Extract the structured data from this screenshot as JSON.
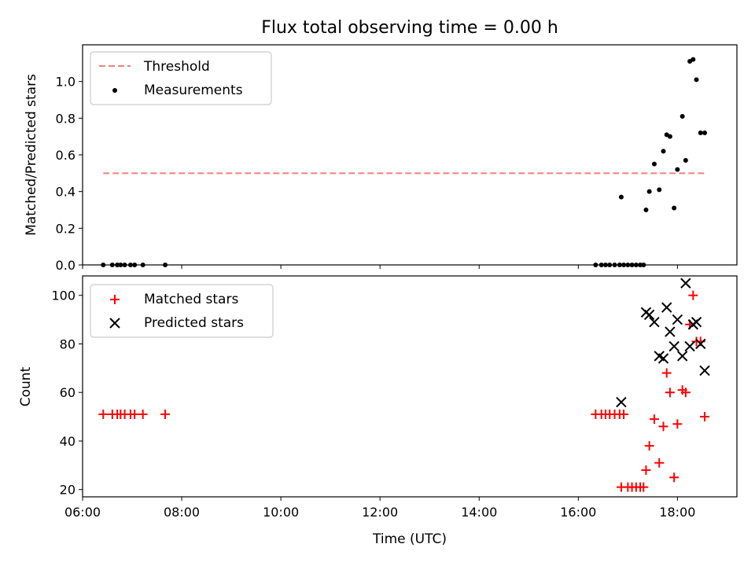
{
  "chart_data": [
    {
      "type": "scatter",
      "title": "Flux total observing time = 0.00 h",
      "xlabel": "",
      "ylabel": "Matched/Predicted stars",
      "xlim": [
        6.0,
        19.2
      ],
      "ylim": [
        0.0,
        1.2
      ],
      "yticks": [
        0.0,
        0.2,
        0.4,
        0.6,
        0.8,
        1.0
      ],
      "ytick_labels": [
        "0.0",
        "0.2",
        "0.4",
        "0.6",
        "0.8",
        "1.0"
      ],
      "xticks": [
        6,
        8,
        10,
        12,
        14,
        16,
        18
      ],
      "legend_position": "top-left",
      "threshold": {
        "name": "Threshold",
        "color": "#f08080",
        "style": "dashed",
        "y": 0.5,
        "x": [
          "06:25",
          "18:35"
        ]
      },
      "series": [
        {
          "name": "Measurements",
          "color": "#000000",
          "marker": "dot",
          "x": [
            "06:25",
            "06:36",
            "06:42",
            "06:46",
            "06:51",
            "06:58",
            "07:03",
            "07:13",
            "07:40",
            "16:21",
            "16:28",
            "16:33",
            "16:38",
            "16:44",
            "16:50",
            "16:55",
            "17:00",
            "17:05",
            "17:10",
            "17:15",
            "17:19",
            "16:52",
            "17:22",
            "17:26",
            "17:32",
            "17:38",
            "17:43",
            "17:47",
            "17:51",
            "17:56",
            "18:00",
            "18:06",
            "18:10",
            "18:15",
            "18:19",
            "18:23",
            "18:28",
            "18:33"
          ],
          "y": [
            0,
            0,
            0,
            0,
            0,
            0,
            0,
            0,
            0,
            0,
            0,
            0,
            0,
            0,
            0,
            0,
            0,
            0,
            0,
            0,
            0,
            0.37,
            0.3,
            0.4,
            0.55,
            0.41,
            0.62,
            0.71,
            0.7,
            0.31,
            0.52,
            0.81,
            0.57,
            1.11,
            1.12,
            1.01,
            0.72,
            0.72
          ]
        }
      ]
    },
    {
      "type": "scatter",
      "title": "",
      "xlabel": "Time (UTC)",
      "ylabel": "Count",
      "xlim": [
        6.0,
        19.2
      ],
      "ylim": [
        17,
        108
      ],
      "yticks": [
        20,
        40,
        60,
        80,
        100
      ],
      "ytick_labels": [
        "20",
        "40",
        "60",
        "80",
        "100"
      ],
      "xticks": [
        6,
        8,
        10,
        12,
        14,
        16,
        18
      ],
      "xtick_labels": [
        "06:00",
        "08:00",
        "10:00",
        "12:00",
        "14:00",
        "16:00",
        "18:00"
      ],
      "legend_position": "top-left",
      "series": [
        {
          "name": "Matched stars",
          "color": "#ff0000",
          "marker": "plus",
          "x": [
            "06:25",
            "06:36",
            "06:42",
            "06:46",
            "06:51",
            "06:58",
            "07:03",
            "07:13",
            "07:40",
            "16:21",
            "16:28",
            "16:33",
            "16:38",
            "16:44",
            "16:50",
            "16:55",
            "16:52",
            "17:00",
            "17:05",
            "17:10",
            "17:15",
            "17:19",
            "17:22",
            "17:26",
            "17:32",
            "17:38",
            "17:43",
            "17:47",
            "17:51",
            "17:56",
            "18:00",
            "18:06",
            "18:10",
            "18:15",
            "18:19",
            "18:23",
            "18:28",
            "18:33"
          ],
          "y": [
            51,
            51,
            51,
            51,
            51,
            51,
            51,
            51,
            51,
            51,
            51,
            51,
            51,
            51,
            51,
            51,
            21,
            21,
            21,
            21,
            21,
            21,
            28,
            38,
            49,
            31,
            46,
            68,
            60,
            25,
            47,
            61,
            60,
            88,
            100,
            81,
            81,
            50
          ]
        },
        {
          "name": "Predicted stars",
          "color": "#000000",
          "marker": "x",
          "x": [
            "16:52",
            "17:22",
            "17:26",
            "17:32",
            "17:38",
            "17:43",
            "17:47",
            "17:51",
            "17:56",
            "18:00",
            "18:06",
            "18:10",
            "18:15",
            "18:19",
            "18:23",
            "18:28",
            "18:33"
          ],
          "y": [
            56,
            93,
            92,
            89,
            75,
            74,
            95,
            85,
            79,
            90,
            75,
            105,
            79,
            88,
            89,
            80,
            69
          ]
        }
      ]
    }
  ]
}
